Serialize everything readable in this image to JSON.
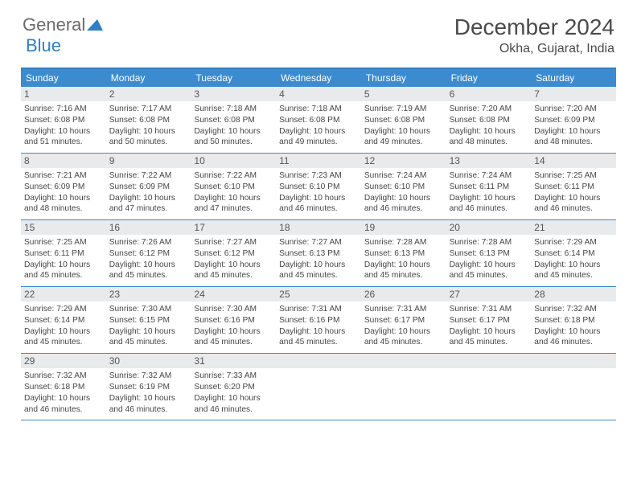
{
  "brand": {
    "part1": "General",
    "part2": "Blue"
  },
  "title": "December 2024",
  "location": "Okha, Gujarat, India",
  "colors": {
    "header_blue": "#3b8bd0",
    "border_blue": "#2f7fc2",
    "daynum_bg": "#e9eaeb",
    "text": "#464646"
  },
  "day_labels": [
    "Sunday",
    "Monday",
    "Tuesday",
    "Wednesday",
    "Thursday",
    "Friday",
    "Saturday"
  ],
  "weeks": [
    [
      {
        "n": "1",
        "sr": "Sunrise: 7:16 AM",
        "ss": "Sunset: 6:08 PM",
        "dl": "Daylight: 10 hours and 51 minutes."
      },
      {
        "n": "2",
        "sr": "Sunrise: 7:17 AM",
        "ss": "Sunset: 6:08 PM",
        "dl": "Daylight: 10 hours and 50 minutes."
      },
      {
        "n": "3",
        "sr": "Sunrise: 7:18 AM",
        "ss": "Sunset: 6:08 PM",
        "dl": "Daylight: 10 hours and 50 minutes."
      },
      {
        "n": "4",
        "sr": "Sunrise: 7:18 AM",
        "ss": "Sunset: 6:08 PM",
        "dl": "Daylight: 10 hours and 49 minutes."
      },
      {
        "n": "5",
        "sr": "Sunrise: 7:19 AM",
        "ss": "Sunset: 6:08 PM",
        "dl": "Daylight: 10 hours and 49 minutes."
      },
      {
        "n": "6",
        "sr": "Sunrise: 7:20 AM",
        "ss": "Sunset: 6:08 PM",
        "dl": "Daylight: 10 hours and 48 minutes."
      },
      {
        "n": "7",
        "sr": "Sunrise: 7:20 AM",
        "ss": "Sunset: 6:09 PM",
        "dl": "Daylight: 10 hours and 48 minutes."
      }
    ],
    [
      {
        "n": "8",
        "sr": "Sunrise: 7:21 AM",
        "ss": "Sunset: 6:09 PM",
        "dl": "Daylight: 10 hours and 48 minutes."
      },
      {
        "n": "9",
        "sr": "Sunrise: 7:22 AM",
        "ss": "Sunset: 6:09 PM",
        "dl": "Daylight: 10 hours and 47 minutes."
      },
      {
        "n": "10",
        "sr": "Sunrise: 7:22 AM",
        "ss": "Sunset: 6:10 PM",
        "dl": "Daylight: 10 hours and 47 minutes."
      },
      {
        "n": "11",
        "sr": "Sunrise: 7:23 AM",
        "ss": "Sunset: 6:10 PM",
        "dl": "Daylight: 10 hours and 46 minutes."
      },
      {
        "n": "12",
        "sr": "Sunrise: 7:24 AM",
        "ss": "Sunset: 6:10 PM",
        "dl": "Daylight: 10 hours and 46 minutes."
      },
      {
        "n": "13",
        "sr": "Sunrise: 7:24 AM",
        "ss": "Sunset: 6:11 PM",
        "dl": "Daylight: 10 hours and 46 minutes."
      },
      {
        "n": "14",
        "sr": "Sunrise: 7:25 AM",
        "ss": "Sunset: 6:11 PM",
        "dl": "Daylight: 10 hours and 46 minutes."
      }
    ],
    [
      {
        "n": "15",
        "sr": "Sunrise: 7:25 AM",
        "ss": "Sunset: 6:11 PM",
        "dl": "Daylight: 10 hours and 45 minutes."
      },
      {
        "n": "16",
        "sr": "Sunrise: 7:26 AM",
        "ss": "Sunset: 6:12 PM",
        "dl": "Daylight: 10 hours and 45 minutes."
      },
      {
        "n": "17",
        "sr": "Sunrise: 7:27 AM",
        "ss": "Sunset: 6:12 PM",
        "dl": "Daylight: 10 hours and 45 minutes."
      },
      {
        "n": "18",
        "sr": "Sunrise: 7:27 AM",
        "ss": "Sunset: 6:13 PM",
        "dl": "Daylight: 10 hours and 45 minutes."
      },
      {
        "n": "19",
        "sr": "Sunrise: 7:28 AM",
        "ss": "Sunset: 6:13 PM",
        "dl": "Daylight: 10 hours and 45 minutes."
      },
      {
        "n": "20",
        "sr": "Sunrise: 7:28 AM",
        "ss": "Sunset: 6:13 PM",
        "dl": "Daylight: 10 hours and 45 minutes."
      },
      {
        "n": "21",
        "sr": "Sunrise: 7:29 AM",
        "ss": "Sunset: 6:14 PM",
        "dl": "Daylight: 10 hours and 45 minutes."
      }
    ],
    [
      {
        "n": "22",
        "sr": "Sunrise: 7:29 AM",
        "ss": "Sunset: 6:14 PM",
        "dl": "Daylight: 10 hours and 45 minutes."
      },
      {
        "n": "23",
        "sr": "Sunrise: 7:30 AM",
        "ss": "Sunset: 6:15 PM",
        "dl": "Daylight: 10 hours and 45 minutes."
      },
      {
        "n": "24",
        "sr": "Sunrise: 7:30 AM",
        "ss": "Sunset: 6:16 PM",
        "dl": "Daylight: 10 hours and 45 minutes."
      },
      {
        "n": "25",
        "sr": "Sunrise: 7:31 AM",
        "ss": "Sunset: 6:16 PM",
        "dl": "Daylight: 10 hours and 45 minutes."
      },
      {
        "n": "26",
        "sr": "Sunrise: 7:31 AM",
        "ss": "Sunset: 6:17 PM",
        "dl": "Daylight: 10 hours and 45 minutes."
      },
      {
        "n": "27",
        "sr": "Sunrise: 7:31 AM",
        "ss": "Sunset: 6:17 PM",
        "dl": "Daylight: 10 hours and 45 minutes."
      },
      {
        "n": "28",
        "sr": "Sunrise: 7:32 AM",
        "ss": "Sunset: 6:18 PM",
        "dl": "Daylight: 10 hours and 46 minutes."
      }
    ],
    [
      {
        "n": "29",
        "sr": "Sunrise: 7:32 AM",
        "ss": "Sunset: 6:18 PM",
        "dl": "Daylight: 10 hours and 46 minutes."
      },
      {
        "n": "30",
        "sr": "Sunrise: 7:32 AM",
        "ss": "Sunset: 6:19 PM",
        "dl": "Daylight: 10 hours and 46 minutes."
      },
      {
        "n": "31",
        "sr": "Sunrise: 7:33 AM",
        "ss": "Sunset: 6:20 PM",
        "dl": "Daylight: 10 hours and 46 minutes."
      },
      {
        "empty": true
      },
      {
        "empty": true
      },
      {
        "empty": true
      },
      {
        "empty": true
      }
    ]
  ]
}
